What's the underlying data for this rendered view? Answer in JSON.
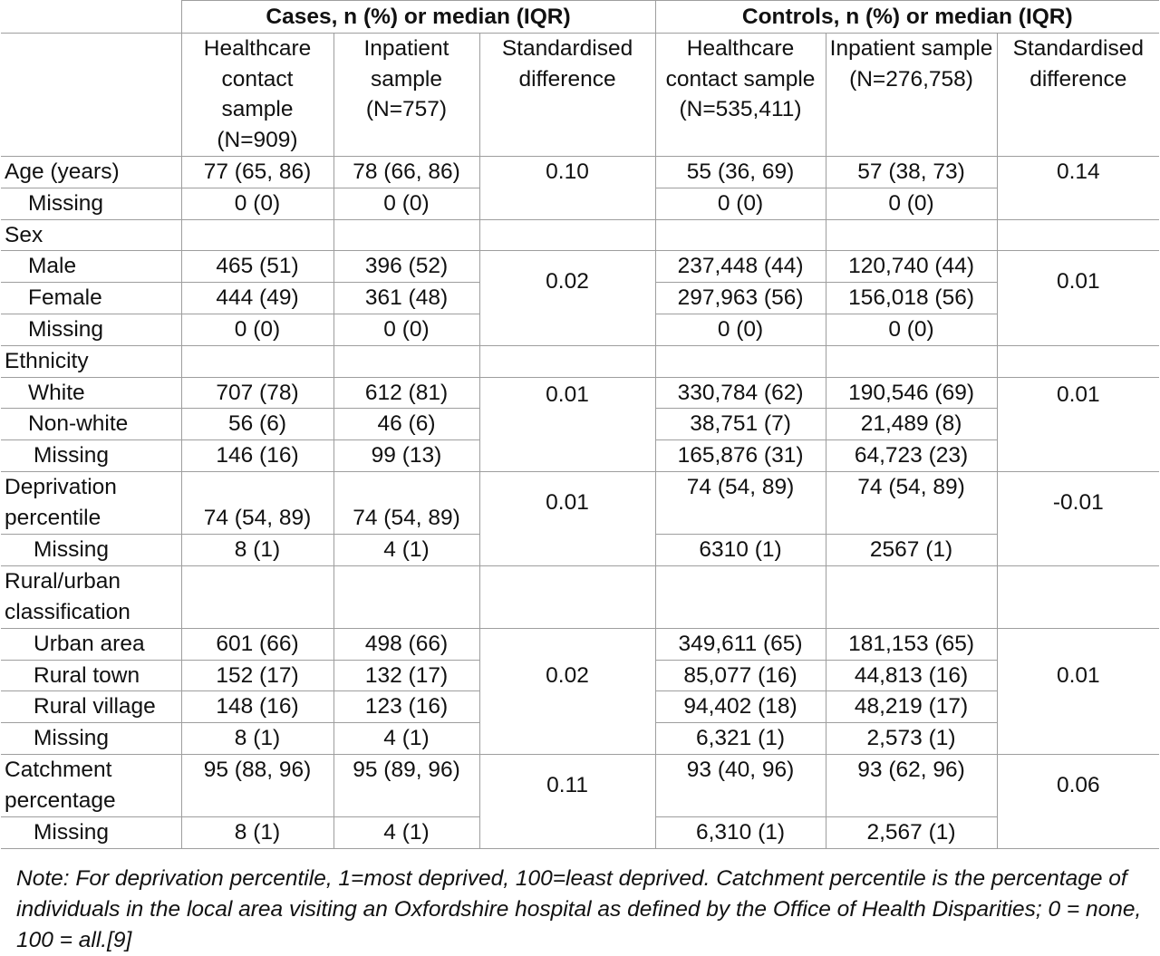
{
  "header": {
    "cases_group": "Cases, n (%) or median (IQR)",
    "controls_group": "Controls, n (%) or median (IQR)",
    "cases_hc": "Healthcare contact sample (N=909)",
    "cases_inp": "Inpatient sample (N=757)",
    "cases_std": "Standardised difference",
    "controls_hc": "Healthcare contact sample (N=535,411)",
    "controls_inp": "Inpatient sample (N=276,758)",
    "controls_std": "Standardised difference"
  },
  "rows": {
    "age": {
      "label": "Age (years)",
      "c_hc": "77 (65, 86)",
      "c_inp": "78 (66, 86)",
      "c_std": "0.10",
      "k_hc": "55 (36, 69)",
      "k_inp": "57 (38, 73)",
      "k_std": "0.14"
    },
    "age_missing": {
      "label": "Missing",
      "c_hc": "0 (0)",
      "c_inp": "0 (0)",
      "k_hc": "0 (0)",
      "k_inp": "0 (0)"
    },
    "sex": {
      "label": "Sex"
    },
    "sex_male": {
      "label": "Male",
      "c_hc": "465 (51)",
      "c_inp": "396 (52)",
      "k_hc": "237,448 (44)",
      "k_inp": "120,740 (44)"
    },
    "sex_female": {
      "label": "Female",
      "c_hc": "444 (49)",
      "c_inp": "361 (48)",
      "k_hc": "297,963 (56)",
      "k_inp": "156,018 (56)"
    },
    "sex_std": {
      "cases": "0.02",
      "controls": "0.01"
    },
    "sex_missing": {
      "label": "Missing",
      "c_hc": "0 (0)",
      "c_inp": "0 (0)",
      "k_hc": "0 (0)",
      "k_inp": "0 (0)"
    },
    "ethnicity": {
      "label": "Ethnicity"
    },
    "eth_white": {
      "label": "White",
      "c_hc": "707 (78)",
      "c_inp": "612 (81)",
      "k_hc": "330,784 (62)",
      "k_inp": "190,546 (69)"
    },
    "eth_nonwhite": {
      "label": "Non-white",
      "c_hc": "56 (6)",
      "c_inp": "46 (6)",
      "k_hc": "38,751 (7)",
      "k_inp": "21,489 (8)"
    },
    "eth_missing": {
      "label": "Missing",
      "c_hc": "146 (16)",
      "c_inp": "99 (13)",
      "k_hc": "165,876 (31)",
      "k_inp": "64,723 (23)"
    },
    "eth_std": {
      "cases": "0.01",
      "controls": "0.01"
    },
    "deprivation": {
      "label": "Deprivation percentile",
      "c_hc": "74 (54, 89)",
      "c_inp": "74 (54, 89)",
      "c_std": "0.01",
      "k_hc": "74 (54, 89)",
      "k_inp": "74 (54, 89)",
      "k_std": "-0.01"
    },
    "dep_missing": {
      "label": "Missing",
      "c_hc": "8 (1)",
      "c_inp": "4 (1)",
      "k_hc": "6310 (1)",
      "k_inp": "2567 (1)"
    },
    "rural": {
      "label": "Rural/urban classification"
    },
    "rural_urban": {
      "label": "Urban area",
      "c_hc": "601 (66)",
      "c_inp": "498 (66)",
      "k_hc": "349,611 (65)",
      "k_inp": "181,153 (65)"
    },
    "rural_town": {
      "label": "Rural town",
      "c_hc": "152 (17)",
      "c_inp": "132 (17)",
      "k_hc": "85,077 (16)",
      "k_inp": "44,813 (16)"
    },
    "rural_village": {
      "label": "Rural village",
      "c_hc": "148 (16)",
      "c_inp": "123 (16)",
      "k_hc": "94,402 (18)",
      "k_inp": "48,219 (17)"
    },
    "rural_missing": {
      "label": "Missing",
      "c_hc": "8 (1)",
      "c_inp": "4 (1)",
      "k_hc": "6,321 (1)",
      "k_inp": "2,573 (1)"
    },
    "rural_std": {
      "cases": "0.02",
      "controls": "0.01"
    },
    "catchment": {
      "label": "Catchment percentage",
      "c_hc": "95 (88, 96)",
      "c_inp": "95 (89, 96)",
      "c_std": "0.11",
      "k_hc": "93 (40, 96)",
      "k_inp": "93 (62, 96)",
      "k_std": "0.06"
    },
    "catch_missing": {
      "label": "Missing",
      "c_hc": "8 (1)",
      "c_inp": "4 (1)",
      "k_hc": "6,310 (1)",
      "k_inp": "2,567 (1)"
    }
  },
  "note": "Note: For deprivation percentile, 1=most deprived, 100=least deprived. Catchment percentile is the percentage of individuals in the local area visiting an Oxfordshire hospital as defined by the Office of Health Disparities; 0 = none, 100 = all.[9]"
}
